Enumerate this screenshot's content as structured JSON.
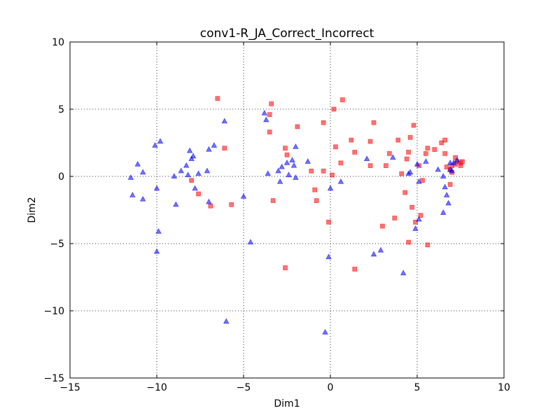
{
  "chart_data": {
    "type": "scatter",
    "title": "conv1-R_JA_Correct_Incorrect",
    "xlabel": "Dim1",
    "ylabel": "Dim2",
    "xlim": [
      -15,
      10
    ],
    "ylim": [
      -15,
      10
    ],
    "xticks": [
      -15,
      -10,
      -5,
      0,
      5,
      10
    ],
    "yticks": [
      -15,
      -10,
      -5,
      0,
      5,
      10
    ],
    "xtick_labels": [
      "−15",
      "−10",
      "−5",
      "0",
      "5",
      "10"
    ],
    "ytick_labels": [
      "−15",
      "−10",
      "−5",
      "0",
      "5",
      "10"
    ],
    "grid": true,
    "grid_style": "dotted",
    "series": [
      {
        "marker": "square",
        "color": "#ff0000",
        "points": [
          [
            -6.5,
            5.8
          ],
          [
            -3.4,
            5.4
          ],
          [
            -3.5,
            4.6
          ],
          [
            -3.5,
            3.3
          ],
          [
            -6.1,
            2.1
          ],
          [
            -3.3,
            -1.8
          ],
          [
            -5.7,
            -2.1
          ],
          [
            -6.9,
            -2.2
          ],
          [
            -7.6,
            -1.3
          ],
          [
            -8.0,
            -0.3
          ],
          [
            -2.6,
            2.1
          ],
          [
            -2.5,
            1.6
          ],
          [
            -1.9,
            3.7
          ],
          [
            -2.6,
            -6.8
          ],
          [
            -1.1,
            0.4
          ],
          [
            -0.9,
            -1.0
          ],
          [
            -0.8,
            -1.8
          ],
          [
            -0.4,
            4.0
          ],
          [
            -0.4,
            0.4
          ],
          [
            -0.1,
            -3.4
          ],
          [
            0.2,
            5.0
          ],
          [
            0.1,
            0.1
          ],
          [
            0.3,
            2.2
          ],
          [
            0.7,
            5.7
          ],
          [
            0.6,
            1.0
          ],
          [
            1.2,
            2.7
          ],
          [
            1.4,
            1.8
          ],
          [
            1.4,
            -6.9
          ],
          [
            2.3,
            2.6
          ],
          [
            2.5,
            4.0
          ],
          [
            2.3,
            0.8
          ],
          [
            3.2,
            0.8
          ],
          [
            3.4,
            1.7
          ],
          [
            3.0,
            -3.7
          ],
          [
            3.7,
            -3.1
          ],
          [
            3.9,
            2.7
          ],
          [
            4.1,
            0.2
          ],
          [
            4.4,
            1.3
          ],
          [
            4.5,
            1.8
          ],
          [
            4.6,
            2.9
          ],
          [
            4.8,
            3.8
          ],
          [
            5.1,
            0.8
          ],
          [
            4.3,
            -1.2
          ],
          [
            4.7,
            -2.3
          ],
          [
            4.5,
            -4.9
          ],
          [
            4.9,
            -3.4
          ],
          [
            5.2,
            -2.9
          ],
          [
            5.3,
            -0.3
          ],
          [
            5.5,
            1.7
          ],
          [
            5.6,
            2.1
          ],
          [
            5.6,
            -5.1
          ],
          [
            6.0,
            2.0
          ],
          [
            6.4,
            2.5
          ],
          [
            6.6,
            2.7
          ],
          [
            6.6,
            1.7
          ],
          [
            6.7,
            0.7
          ],
          [
            6.9,
            0.5
          ],
          [
            7.0,
            0.3
          ],
          [
            7.2,
            1.4
          ],
          [
            7.0,
            0.8
          ],
          [
            7.3,
            1.1
          ],
          [
            7.5,
            1.0
          ],
          [
            7.6,
            1.1
          ],
          [
            7.2,
            0.9
          ],
          [
            7.5,
            0.8
          ],
          [
            6.9,
            -0.6
          ]
        ]
      },
      {
        "marker": "triangle",
        "color": "#0000ff",
        "points": [
          [
            -11.5,
            -0.1
          ],
          [
            -11.1,
            0.9
          ],
          [
            -10.8,
            0.3
          ],
          [
            -10.8,
            -1.7
          ],
          [
            -11.4,
            -1.4
          ],
          [
            -10.1,
            2.3
          ],
          [
            -9.8,
            2.6
          ],
          [
            -10.0,
            -0.9
          ],
          [
            -9.9,
            -4.1
          ],
          [
            -10.0,
            -5.6
          ],
          [
            -9.0,
            0.0
          ],
          [
            -8.9,
            -2.1
          ],
          [
            -8.6,
            0.4
          ],
          [
            -8.3,
            0.8
          ],
          [
            -8.1,
            1.9
          ],
          [
            -8.0,
            1.3
          ],
          [
            -8.2,
            0.1
          ],
          [
            -7.9,
            1.5
          ],
          [
            -7.8,
            -0.9
          ],
          [
            -7.6,
            0.2
          ],
          [
            -7.1,
            0.4
          ],
          [
            -7.0,
            2.0
          ],
          [
            -6.7,
            2.3
          ],
          [
            -7.0,
            -1.9
          ],
          [
            -6.1,
            4.1
          ],
          [
            -6.0,
            -10.8
          ],
          [
            -5.0,
            -1.5
          ],
          [
            -4.6,
            -4.9
          ],
          [
            -3.8,
            4.7
          ],
          [
            -3.7,
            4.2
          ],
          [
            -3.6,
            0.2
          ],
          [
            -3.0,
            0.4
          ],
          [
            -2.8,
            0.7
          ],
          [
            -2.9,
            -0.4
          ],
          [
            -2.5,
            1.0
          ],
          [
            -2.4,
            0.1
          ],
          [
            -2.2,
            1.2
          ],
          [
            -2.1,
            0.8
          ],
          [
            -2.0,
            -0.1
          ],
          [
            -2.0,
            2.2
          ],
          [
            -1.3,
            1.1
          ],
          [
            -0.3,
            -11.6
          ],
          [
            -0.1,
            -6.0
          ],
          [
            0.0,
            -0.9
          ],
          [
            0.6,
            -0.4
          ],
          [
            2.1,
            1.3
          ],
          [
            2.5,
            -5.8
          ],
          [
            2.9,
            -5.5
          ],
          [
            3.6,
            1.4
          ],
          [
            4.2,
            -7.2
          ],
          [
            4.5,
            0.2
          ],
          [
            4.6,
            0.3
          ],
          [
            4.9,
            -3.9
          ],
          [
            5.0,
            0.9
          ],
          [
            5.1,
            -3.2
          ],
          [
            5.1,
            -0.4
          ],
          [
            5.5,
            1.1
          ],
          [
            6.2,
            0.5
          ],
          [
            6.5,
            -2.7
          ],
          [
            6.5,
            0.0
          ],
          [
            6.6,
            -0.8
          ],
          [
            6.7,
            -1.4
          ],
          [
            6.8,
            -2.0
          ],
          [
            6.9,
            1.0
          ],
          [
            6.9,
            0.5
          ],
          [
            7.1,
            1.0
          ],
          [
            7.3,
            1.2
          ],
          [
            7.0,
            0.4
          ]
        ]
      }
    ]
  }
}
